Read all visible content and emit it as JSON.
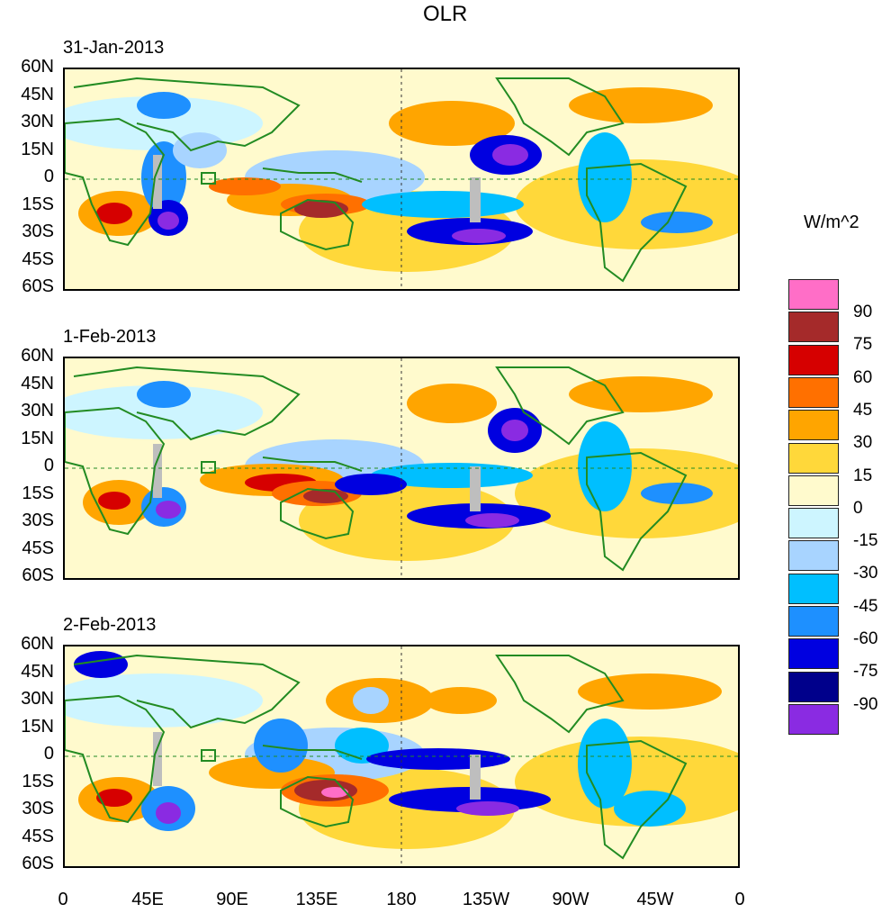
{
  "figure": {
    "title": "OLR",
    "units_label": "W/m^2",
    "panels": [
      {
        "date": "31-Jan-2013"
      },
      {
        "date": "1-Feb-2013"
      },
      {
        "date": "2-Feb-2013"
      }
    ],
    "y_ticks": [
      "60N",
      "45N",
      "30N",
      "15N",
      "0",
      "15S",
      "30S",
      "45S",
      "60S"
    ],
    "x_ticks": [
      "0",
      "45E",
      "90E",
      "135E",
      "180",
      "135W",
      "90W",
      "45W",
      "0"
    ]
  },
  "colorbar": {
    "labels": [
      "90",
      "75",
      "60",
      "45",
      "30",
      "15",
      "0",
      "-15",
      "-30",
      "-45",
      "-60",
      "-75",
      "-90"
    ],
    "colors": [
      "#ff6ec7",
      "#a52a2a",
      "#d60000",
      "#ff7000",
      "#ffa500",
      "#ffd83a",
      "#fffacd",
      "#cdf5ff",
      "#a8d4ff",
      "#00bfff",
      "#1e90ff",
      "#0000e0",
      "#00008b",
      "#8a2be2"
    ]
  },
  "colors": {
    "coast": "#228b22",
    "missing": "#bebebe"
  }
}
